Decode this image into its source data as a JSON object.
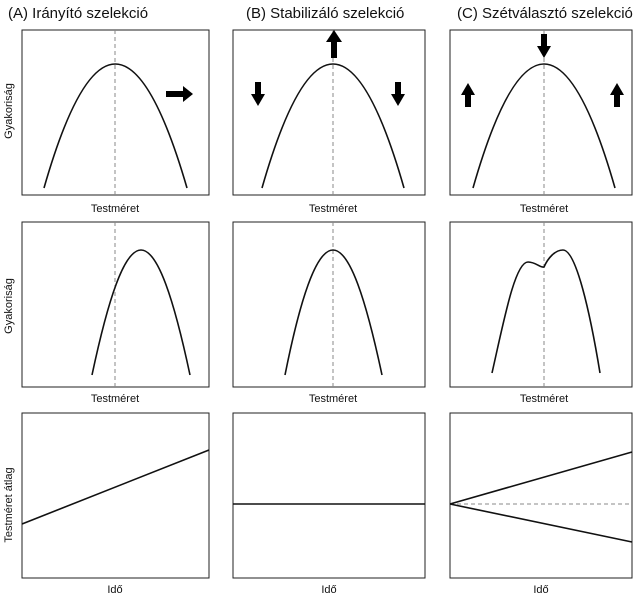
{
  "columns": [
    {
      "title": "(A) Irányító szelekció"
    },
    {
      "title": "(B) Stabilizáló szelekció"
    },
    {
      "title": "(C) Szétválasztó szelekció"
    }
  ],
  "rows": [
    {
      "ylabel": "Gyakoriság",
      "xlabel": "Testméret"
    },
    {
      "ylabel": "Gyakoriság",
      "xlabel": "Testméret"
    },
    {
      "ylabel": "Testméret átlag",
      "xlabel": "Idő"
    }
  ],
  "colors": {
    "line": "#111111",
    "dashed": "#888888",
    "frame": "#222222"
  }
}
